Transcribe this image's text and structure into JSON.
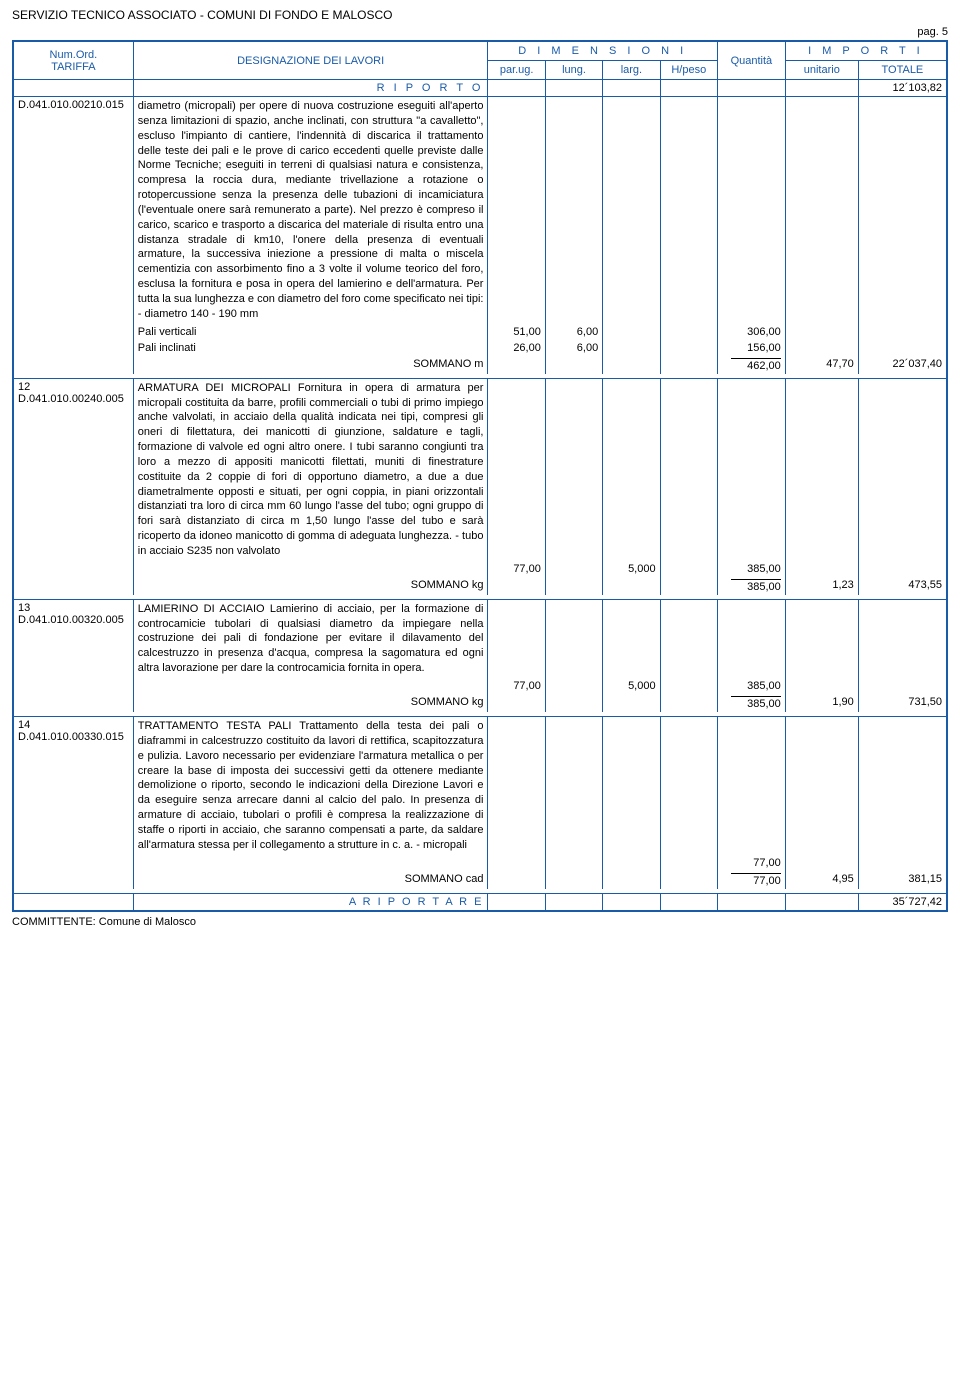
{
  "header": {
    "title": "SERVIZIO TECNICO ASSOCIATO - COMUNI DI FONDO E MALOSCO",
    "page": "pag. 5"
  },
  "columns": {
    "tariffa_top": "Num.Ord.",
    "tariffa_bottom": "TARIFFA",
    "designazione": "DESIGNAZIONE DEI LAVORI",
    "dimensioni": "D I M E N S I O N I",
    "parug": "par.ug.",
    "lung": "lung.",
    "larg": "larg.",
    "hpeso": "H/peso",
    "quantita": "Quantità",
    "importi": "I M P O R T I",
    "unitario": "unitario",
    "totale": "TOTALE"
  },
  "riporto": {
    "label": "R I P O R T O",
    "totale": "12´103,82"
  },
  "items": [
    {
      "tariffa": "D.041.010.00210.015",
      "desc": "diametro (micropali) per opere di nuova costruzione eseguiti all'aperto senza limitazioni di spazio, anche inclinati, con struttura \"a cavalletto\", escluso l'impianto di cantiere, l'indennità di discarica il trattamento delle teste dei pali e le prove di carico eccedenti quelle previste dalle Norme Tecniche; eseguiti in terreni di qualsiasi natura e consistenza, compresa la roccia dura, mediante trivellazione a rotazione o rotopercussione senza la presenza delle tubazioni di incamiciatura (l'eventuale onere sarà remunerato a parte). Nel prezzo è compreso il carico, scarico e trasporto a discarica del materiale di risulta entro una distanza stradale di km10, l'onere della presenza di eventuali armature, la successiva iniezione a pressione di malta o miscela cementizia con assorbimento fino a 3 volte il volume teorico del foro, esclusa la fornitura e posa in opera del lamierino e dell'armatura. Per tutta la sua lunghezza e con diametro del foro come specificato nei tipi: - diametro 140 - 190 mm",
      "lines": [
        {
          "label": "Pali verticali",
          "parug": "51,00",
          "lung": "6,00",
          "qta": "306,00"
        },
        {
          "label": "Pali inclinati",
          "parug": "26,00",
          "lung": "6,00",
          "qta": "156,00"
        }
      ],
      "sommano": {
        "label": "SOMMANO m",
        "qta": "462,00",
        "unitario": "47,70",
        "totale": "22´037,40"
      }
    },
    {
      "num": "12",
      "tariffa": "D.041.010.00240.005",
      "desc": "ARMATURA DEI MICROPALI Fornitura in opera di armatura per micropali costituita da barre, profili commerciali o tubi di primo impiego anche valvolati, in acciaio della qualità indicata nei tipi, compresi gli oneri di filettatura, dei manicotti di giunzione, saldature e tagli, formazione di valvole ed ogni altro onere. I tubi saranno congiunti tra loro a mezzo di appositi manicotti filettati, muniti di finestrature costituite da 2 coppie di fori di opportuno diametro, a due a due diametralmente opposti e situati, per ogni coppia, in piani orizzontali distanziati tra loro di circa mm 60 lungo l'asse del tubo; ogni gruppo di fori sarà distanziato di circa m 1,50 lungo l'asse del tubo e sarà ricoperto da idoneo manicotto di gomma di adeguata lunghezza. - tubo in acciaio S235 non valvolato",
      "lines": [
        {
          "parug": "77,00",
          "larg": "5,000",
          "qta": "385,00"
        }
      ],
      "sommano": {
        "label": "SOMMANO kg",
        "qta": "385,00",
        "unitario": "1,23",
        "totale": "473,55"
      }
    },
    {
      "num": "13",
      "tariffa": "D.041.010.00320.005",
      "desc": "LAMIERINO DI ACCIAIO Lamierino di acciaio, per la formazione di controcamicie tubolari di qualsiasi diametro da impiegare nella costruzione dei pali di fondazione per evitare il dilavamento del calcestruzzo in presenza d'acqua, compresa la sagomatura ed ogni altra lavorazione per dare la controcamicia fornita in opera.",
      "lines": [
        {
          "parug": "77,00",
          "larg": "5,000",
          "qta": "385,00"
        }
      ],
      "sommano": {
        "label": "SOMMANO kg",
        "qta": "385,00",
        "unitario": "1,90",
        "totale": "731,50"
      }
    },
    {
      "num": "14",
      "tariffa": "D.041.010.00330.015",
      "desc": "TRATTAMENTO TESTA PALI Trattamento della testa dei pali o diaframmi in calcestruzzo costituito da lavori di rettifica, scapitozzatura e pulizia. Lavoro necessario per evidenziare l'armatura metallica o per creare la base di imposta dei successivi getti da ottenere mediante demolizione o riporto, secondo le indicazioni della Direzione Lavori e da eseguire senza arrecare danni al calcio del palo. In presenza di armature di acciaio, tubolari o profili è compresa la realizzazione di staffe o riporti in acciaio, che saranno compensati a parte, da saldare all'armatura stessa per il collegamento a strutture in c. a. - micropali",
      "lines": [
        {
          "qta": "77,00"
        }
      ],
      "sommano": {
        "label": "SOMMANO cad",
        "qta": "77,00",
        "unitario": "4,95",
        "totale": "381,15"
      }
    }
  ],
  "riportare": {
    "label": "A  R I P O R T A R E",
    "totale": "35´727,42"
  },
  "footer": "COMMITTENTE: Comune di Malosco"
}
